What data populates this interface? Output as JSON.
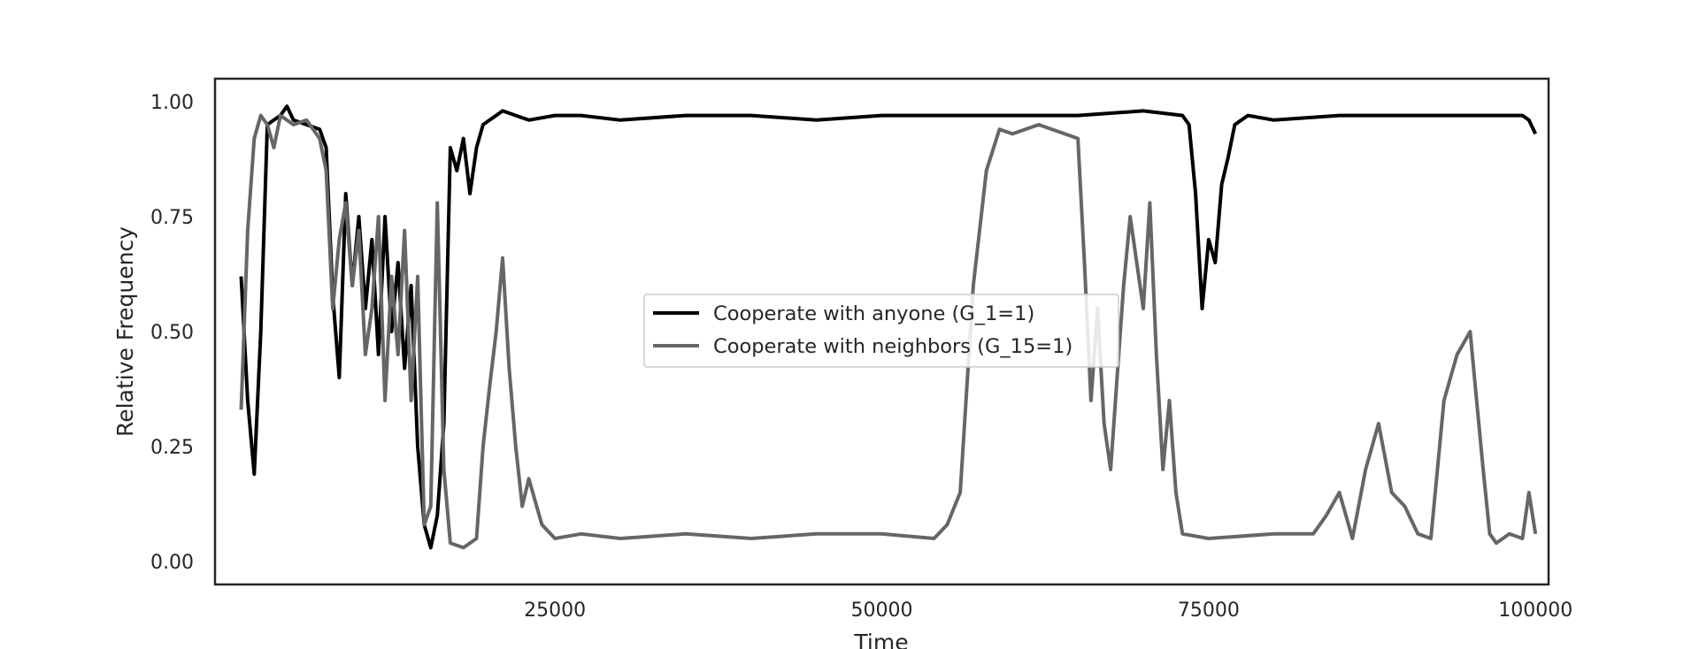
{
  "chart_data": {
    "type": "line",
    "xlabel": "Time",
    "ylabel": "Relative Frequency",
    "xlim": [
      -1000,
      101000
    ],
    "ylim": [
      -0.05,
      1.05
    ],
    "xticks": [
      25000,
      50000,
      75000,
      100000
    ],
    "xtick_labels": [
      "25000",
      "50000",
      "75000",
      "100000"
    ],
    "yticks": [
      0.0,
      0.25,
      0.5,
      0.75,
      1.0
    ],
    "ytick_labels": [
      "0.00",
      "0.25",
      "0.50",
      "0.75",
      "1.00"
    ],
    "grid": false,
    "legend_position": "center",
    "series": [
      {
        "name": "Cooperate with anyone (G_1=1)",
        "color": "#000000",
        "x": [
          1000,
          1500,
          2000,
          2500,
          3000,
          3500,
          4000,
          4500,
          5000,
          6000,
          7000,
          7500,
          8000,
          8500,
          9000,
          9500,
          10000,
          10500,
          11000,
          11500,
          12000,
          12500,
          13000,
          13500,
          14000,
          14500,
          15000,
          15500,
          16000,
          16500,
          17000,
          17500,
          18000,
          18500,
          19000,
          19500,
          20000,
          20500,
          21000,
          22000,
          23000,
          25000,
          27000,
          30000,
          35000,
          40000,
          45000,
          50000,
          55000,
          60000,
          65000,
          70000,
          73000,
          73500,
          74000,
          74500,
          75000,
          75500,
          76000,
          76500,
          77000,
          78000,
          80000,
          85000,
          90000,
          95000,
          99000,
          99500,
          100000
        ],
        "values": [
          0.62,
          0.35,
          0.19,
          0.5,
          0.95,
          0.96,
          0.97,
          0.99,
          0.96,
          0.95,
          0.94,
          0.9,
          0.58,
          0.4,
          0.8,
          0.6,
          0.75,
          0.55,
          0.7,
          0.45,
          0.75,
          0.5,
          0.65,
          0.42,
          0.6,
          0.25,
          0.08,
          0.03,
          0.1,
          0.3,
          0.9,
          0.85,
          0.92,
          0.8,
          0.9,
          0.95,
          0.96,
          0.97,
          0.98,
          0.97,
          0.96,
          0.97,
          0.97,
          0.96,
          0.97,
          0.97,
          0.96,
          0.97,
          0.97,
          0.97,
          0.97,
          0.98,
          0.97,
          0.95,
          0.8,
          0.55,
          0.7,
          0.65,
          0.82,
          0.88,
          0.95,
          0.97,
          0.96,
          0.97,
          0.97,
          0.97,
          0.97,
          0.96,
          0.93
        ]
      },
      {
        "name": "Cooperate with neighbors (G_15=1)",
        "color": "#666666",
        "x": [
          1000,
          1500,
          2000,
          2500,
          3000,
          3500,
          4000,
          5000,
          6000,
          7000,
          7500,
          8000,
          8500,
          9000,
          9500,
          10000,
          10500,
          11000,
          11500,
          12000,
          12500,
          13000,
          13500,
          14000,
          14500,
          15000,
          15500,
          16000,
          16500,
          17000,
          18000,
          19000,
          19500,
          20000,
          20500,
          21000,
          21500,
          22000,
          22500,
          23000,
          24000,
          25000,
          27000,
          30000,
          35000,
          40000,
          45000,
          50000,
          54000,
          55000,
          56000,
          57000,
          58000,
          59000,
          60000,
          62000,
          64000,
          65000,
          65500,
          66000,
          66500,
          67000,
          67500,
          68000,
          68500,
          69000,
          69500,
          70000,
          70500,
          71000,
          71500,
          72000,
          72500,
          73000,
          75000,
          80000,
          83000,
          84000,
          85000,
          86000,
          87000,
          88000,
          89000,
          90000,
          91000,
          92000,
          93000,
          94000,
          95000,
          95500,
          96000,
          96500,
          97000,
          98000,
          99000,
          99500,
          100000
        ],
        "values": [
          0.33,
          0.72,
          0.92,
          0.97,
          0.95,
          0.9,
          0.97,
          0.95,
          0.96,
          0.92,
          0.85,
          0.55,
          0.7,
          0.78,
          0.6,
          0.72,
          0.45,
          0.55,
          0.75,
          0.35,
          0.62,
          0.45,
          0.72,
          0.35,
          0.62,
          0.08,
          0.12,
          0.78,
          0.2,
          0.04,
          0.03,
          0.05,
          0.25,
          0.38,
          0.5,
          0.66,
          0.42,
          0.25,
          0.12,
          0.18,
          0.08,
          0.05,
          0.06,
          0.05,
          0.06,
          0.05,
          0.06,
          0.06,
          0.05,
          0.08,
          0.15,
          0.6,
          0.85,
          0.94,
          0.93,
          0.95,
          0.93,
          0.92,
          0.65,
          0.35,
          0.55,
          0.3,
          0.2,
          0.4,
          0.6,
          0.75,
          0.65,
          0.55,
          0.78,
          0.45,
          0.2,
          0.35,
          0.15,
          0.06,
          0.05,
          0.06,
          0.06,
          0.1,
          0.15,
          0.05,
          0.2,
          0.3,
          0.15,
          0.12,
          0.06,
          0.05,
          0.35,
          0.45,
          0.5,
          0.35,
          0.2,
          0.06,
          0.04,
          0.06,
          0.05,
          0.15,
          0.06
        ]
      }
    ]
  }
}
